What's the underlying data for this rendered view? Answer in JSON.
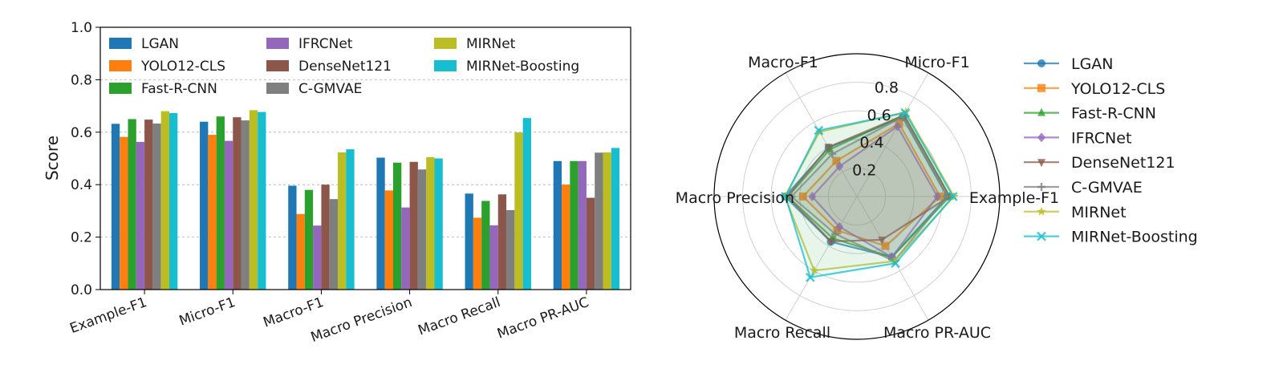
{
  "chart_data": [
    {
      "type": "bar",
      "ylabel": "Score",
      "xlabel": "",
      "ylim": [
        0,
        1.0
      ],
      "yticks": [
        "0.0",
        "0.2",
        "0.4",
        "0.6",
        "0.8",
        "1.0"
      ],
      "grid": "y dashed",
      "legend_position": "top, 3 columns",
      "categories": [
        "Example-F1",
        "Micro-F1",
        "Macro-F1",
        "Macro Precision",
        "Macro Recall",
        "Macro PR-AUC"
      ],
      "series": [
        {
          "name": "LGAN",
          "color": "#1f77b4",
          "values": [
            0.632,
            0.64,
            0.396,
            0.503,
            0.366,
            0.49
          ]
        },
        {
          "name": "YOLO12-CLS",
          "color": "#ff7f0e",
          "values": [
            0.582,
            0.59,
            0.288,
            0.378,
            0.274,
            0.4
          ]
        },
        {
          "name": "Fast-R-CNN",
          "color": "#2ca02c",
          "values": [
            0.65,
            0.66,
            0.38,
            0.484,
            0.338,
            0.49
          ]
        },
        {
          "name": "IFRCNet",
          "color": "#9467bd",
          "values": [
            0.563,
            0.567,
            0.244,
            0.313,
            0.245,
            0.49
          ]
        },
        {
          "name": "DenseNet121",
          "color": "#8c564b",
          "values": [
            0.648,
            0.657,
            0.4,
            0.487,
            0.363,
            0.35
          ]
        },
        {
          "name": "C-GMVAE",
          "color": "#7f7f7f",
          "values": [
            0.633,
            0.645,
            0.345,
            0.458,
            0.303,
            0.522
          ]
        },
        {
          "name": "MIRNet",
          "color": "#bcbd22",
          "values": [
            0.68,
            0.684,
            0.523,
            0.505,
            0.599,
            0.523
          ]
        },
        {
          "name": "MIRNet-Boosting",
          "color": "#17becf",
          "values": [
            0.673,
            0.677,
            0.535,
            0.5,
            0.654,
            0.54
          ]
        }
      ]
    },
    {
      "type": "radar",
      "axes": [
        "Micro-F1",
        "Example-F1",
        "Macro PR-AUC",
        "Macro Recall",
        "Macro Precision",
        "Macro-F1"
      ],
      "rlim": [
        0,
        1.0
      ],
      "rticks": [
        "0.2",
        "0.4",
        "0.6",
        "0.8"
      ],
      "legend_position": "right",
      "series": [
        {
          "name": "LGAN",
          "color": "#1f77b4",
          "marker": "circle",
          "values": [
            0.64,
            0.632,
            0.49,
            0.366,
            0.503,
            0.396
          ]
        },
        {
          "name": "YOLO12-CLS",
          "color": "#ff7f0e",
          "marker": "square",
          "values": [
            0.59,
            0.582,
            0.4,
            0.274,
            0.378,
            0.288
          ]
        },
        {
          "name": "Fast-R-CNN",
          "color": "#2ca02c",
          "marker": "triangle-up",
          "values": [
            0.66,
            0.65,
            0.49,
            0.338,
            0.484,
            0.38
          ]
        },
        {
          "name": "IFRCNet",
          "color": "#9467bd",
          "marker": "diamond",
          "values": [
            0.567,
            0.563,
            0.49,
            0.245,
            0.313,
            0.244
          ]
        },
        {
          "name": "DenseNet121",
          "color": "#8c564b",
          "marker": "triangle-down",
          "values": [
            0.657,
            0.648,
            0.35,
            0.363,
            0.487,
            0.4
          ]
        },
        {
          "name": "C-GMVAE",
          "color": "#7f7f7f",
          "marker": "plus",
          "values": [
            0.645,
            0.633,
            0.522,
            0.303,
            0.458,
            0.345
          ]
        },
        {
          "name": "MIRNet",
          "color": "#bcbd22",
          "marker": "star",
          "values": [
            0.684,
            0.68,
            0.523,
            0.599,
            0.505,
            0.523
          ]
        },
        {
          "name": "MIRNet-Boosting",
          "color": "#17becf",
          "marker": "x",
          "values": [
            0.677,
            0.673,
            0.54,
            0.654,
            0.5,
            0.535
          ]
        }
      ]
    }
  ]
}
